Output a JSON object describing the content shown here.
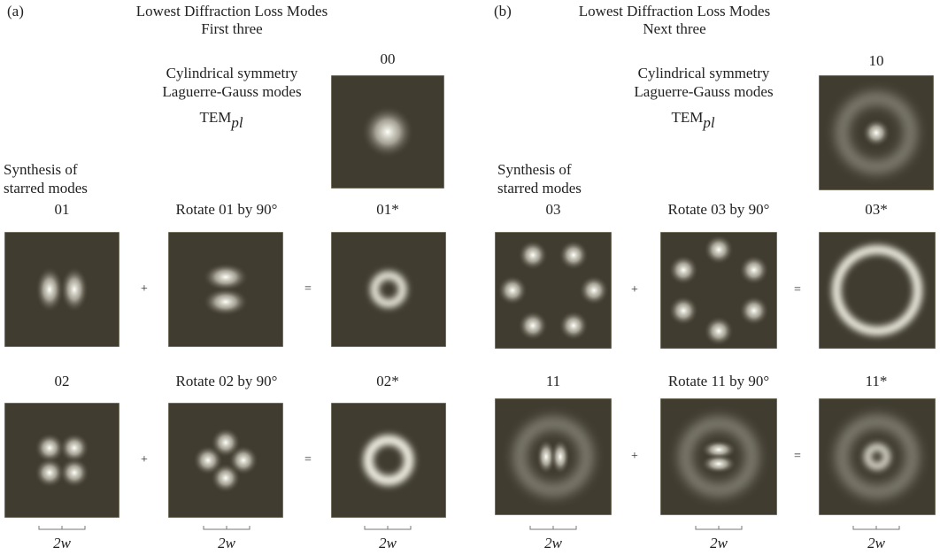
{
  "panels": [
    {
      "label": "(a)",
      "title": [
        "Lowest Diffraction Loss Modes",
        "First three"
      ],
      "description": [
        "Cylindrical symmetry",
        "Laguerre-Gauss modes"
      ],
      "tem": "TEM",
      "tem_sub": "pl",
      "base_mode": "00",
      "synthesis": [
        "Synthesis of",
        "starred modes"
      ],
      "rows": [
        {
          "labels": [
            "01",
            "Rotate 01 by 90°",
            "01*"
          ],
          "plus": "+",
          "equals": "="
        },
        {
          "labels": [
            "02",
            "Rotate 02 by 90°",
            "02*"
          ],
          "plus": "+",
          "equals": "="
        }
      ],
      "scale_labels": [
        "2w",
        "2w",
        "2w"
      ]
    },
    {
      "label": "(b)",
      "title": [
        "Lowest Diffraction Loss Modes",
        "Next three"
      ],
      "description": [
        "Cylindrical symmetry",
        "Laguerre-Gauss modes"
      ],
      "tem": "TEM",
      "tem_sub": "pl",
      "base_mode": "10",
      "synthesis": [
        "Synthesis of",
        "starred modes"
      ],
      "rows": [
        {
          "labels": [
            "03",
            "Rotate 03 by 90°",
            "03*"
          ],
          "plus": "+",
          "equals": "="
        },
        {
          "labels": [
            "11",
            "Rotate 11 by 90°",
            "11*"
          ],
          "plus": "+",
          "equals": "="
        }
      ],
      "scale_labels": [
        "2w",
        "2w",
        "2w"
      ]
    }
  ]
}
